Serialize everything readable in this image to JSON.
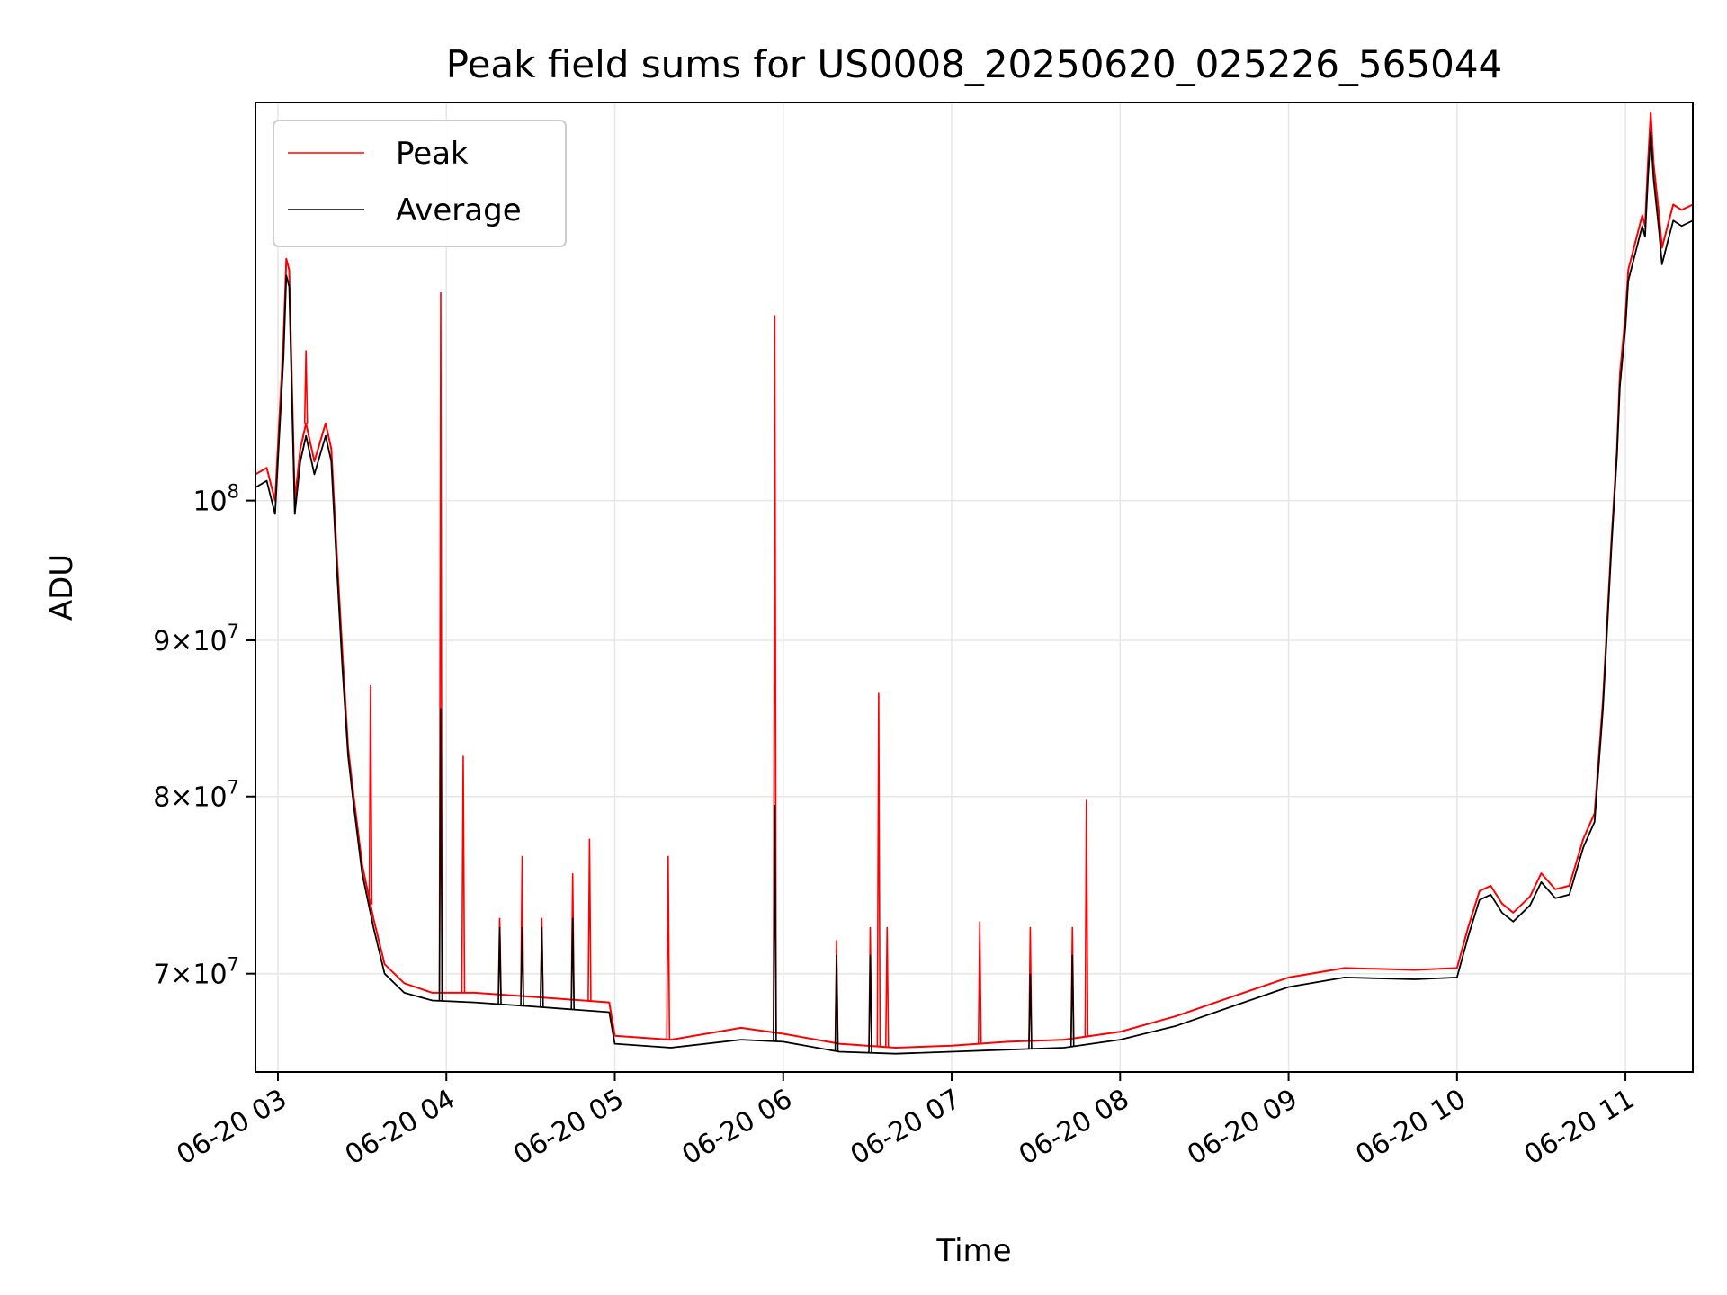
{
  "chart_data": {
    "type": "line",
    "title": "Peak field sums for US0008_20250620_025226_565044",
    "xlabel": "Time",
    "ylabel": "ADU",
    "y_scale": "log",
    "xlim": [
      "2025-06-20T02:52",
      "2025-06-20T11:24"
    ],
    "ylim": [
      65000000,
      135000000
    ],
    "grid": true,
    "legend_position": "top-left",
    "x_ticks": [
      {
        "value": "2025-06-20T03:00",
        "label": "06-20 03"
      },
      {
        "value": "2025-06-20T04:00",
        "label": "06-20 04"
      },
      {
        "value": "2025-06-20T05:00",
        "label": "06-20 05"
      },
      {
        "value": "2025-06-20T06:00",
        "label": "06-20 06"
      },
      {
        "value": "2025-06-20T07:00",
        "label": "06-20 07"
      },
      {
        "value": "2025-06-20T08:00",
        "label": "06-20 08"
      },
      {
        "value": "2025-06-20T09:00",
        "label": "06-20 09"
      },
      {
        "value": "2025-06-20T10:00",
        "label": "06-20 10"
      },
      {
        "value": "2025-06-20T11:00",
        "label": "06-20 11"
      }
    ],
    "y_ticks": [
      {
        "value": 70000000,
        "mantissa": "7",
        "base": "10",
        "exp": "7"
      },
      {
        "value": 80000000,
        "mantissa": "8",
        "base": "10",
        "exp": "7"
      },
      {
        "value": 90000000,
        "mantissa": "9",
        "base": "10",
        "exp": "7"
      },
      {
        "value": 100000000,
        "mantissa": "",
        "base": "10",
        "exp": "8"
      }
    ],
    "series": [
      {
        "name": "Peak",
        "color": "#ff0000",
        "points": [
          [
            "2025-06-20T02:52",
            102000000
          ],
          [
            "2025-06-20T02:56",
            102500000
          ],
          [
            "2025-06-20T02:59",
            100000000
          ],
          [
            "2025-06-20T03:02",
            113000000
          ],
          [
            "2025-06-20T03:03",
            120000000
          ],
          [
            "2025-06-20T03:04",
            119000000
          ],
          [
            "2025-06-20T03:06",
            100000000
          ],
          [
            "2025-06-20T03:08",
            104000000
          ],
          [
            "2025-06-20T03:10",
            106000000
          ],
          [
            "2025-06-20T03:13",
            103000000
          ],
          [
            "2025-06-20T03:17",
            106000000
          ],
          [
            "2025-06-20T03:19",
            104000000
          ],
          [
            "2025-06-20T03:21",
            96000000
          ],
          [
            "2025-06-20T03:23",
            89000000
          ],
          [
            "2025-06-20T03:25",
            83000000
          ],
          [
            "2025-06-20T03:27",
            80000000
          ],
          [
            "2025-06-20T03:30",
            76000000
          ],
          [
            "2025-06-20T03:34",
            73000000
          ],
          [
            "2025-06-20T03:38",
            70500000
          ],
          [
            "2025-06-20T03:45",
            69500000
          ],
          [
            "2025-06-20T03:55",
            69000000
          ],
          [
            "2025-06-20T04:10",
            69000000
          ],
          [
            "2025-06-20T04:30",
            68800000
          ],
          [
            "2025-06-20T04:58",
            68500000
          ],
          [
            "2025-06-20T05:00",
            66800000
          ],
          [
            "2025-06-20T05:20",
            66600000
          ],
          [
            "2025-06-20T05:45",
            67200000
          ],
          [
            "2025-06-20T06:00",
            66900000
          ],
          [
            "2025-06-20T06:20",
            66400000
          ],
          [
            "2025-06-20T06:40",
            66200000
          ],
          [
            "2025-06-20T07:00",
            66300000
          ],
          [
            "2025-06-20T07:20",
            66500000
          ],
          [
            "2025-06-20T07:40",
            66600000
          ],
          [
            "2025-06-20T08:00",
            67000000
          ],
          [
            "2025-06-20T08:20",
            67800000
          ],
          [
            "2025-06-20T08:40",
            68800000
          ],
          [
            "2025-06-20T09:00",
            69800000
          ],
          [
            "2025-06-20T09:20",
            70300000
          ],
          [
            "2025-06-20T09:45",
            70200000
          ],
          [
            "2025-06-20T10:00",
            70300000
          ],
          [
            "2025-06-20T10:04",
            72500000
          ],
          [
            "2025-06-20T10:08",
            74500000
          ],
          [
            "2025-06-20T10:12",
            74800000
          ],
          [
            "2025-06-20T10:16",
            73800000
          ],
          [
            "2025-06-20T10:20",
            73300000
          ],
          [
            "2025-06-20T10:26",
            74200000
          ],
          [
            "2025-06-20T10:30",
            75500000
          ],
          [
            "2025-06-20T10:35",
            74600000
          ],
          [
            "2025-06-20T10:40",
            74800000
          ],
          [
            "2025-06-20T10:45",
            77500000
          ],
          [
            "2025-06-20T10:49",
            79000000
          ],
          [
            "2025-06-20T10:52",
            86000000
          ],
          [
            "2025-06-20T10:55",
            97000000
          ],
          [
            "2025-06-20T10:57",
            104000000
          ],
          [
            "2025-06-20T10:58",
            110000000
          ],
          [
            "2025-06-20T11:00",
            115000000
          ],
          [
            "2025-06-20T11:01",
            119000000
          ],
          [
            "2025-06-20T11:03",
            121000000
          ],
          [
            "2025-06-20T11:05",
            123000000
          ],
          [
            "2025-06-20T11:06",
            124000000
          ],
          [
            "2025-06-20T11:07",
            123000000
          ],
          [
            "2025-06-20T11:08",
            129000000
          ],
          [
            "2025-06-20T11:09",
            134000000
          ],
          [
            "2025-06-20T11:10",
            129000000
          ],
          [
            "2025-06-20T11:12",
            124000000
          ],
          [
            "2025-06-20T11:13",
            121000000
          ],
          [
            "2025-06-20T11:15",
            123000000
          ],
          [
            "2025-06-20T11:17",
            125000000
          ],
          [
            "2025-06-20T11:20",
            124500000
          ],
          [
            "2025-06-20T11:24",
            125000000
          ]
        ],
        "spikes": [
          [
            "2025-06-20T03:10",
            112000000
          ],
          [
            "2025-06-20T03:33",
            87000000
          ],
          [
            "2025-06-20T03:58",
            117000000
          ],
          [
            "2025-06-20T04:06",
            82500000
          ],
          [
            "2025-06-20T04:19",
            73000000
          ],
          [
            "2025-06-20T04:27",
            76500000
          ],
          [
            "2025-06-20T04:34",
            73000000
          ],
          [
            "2025-06-20T04:45",
            75500000
          ],
          [
            "2025-06-20T04:51",
            77500000
          ],
          [
            "2025-06-20T05:19",
            76500000
          ],
          [
            "2025-06-20T05:57",
            115000000
          ],
          [
            "2025-06-20T06:19",
            71800000
          ],
          [
            "2025-06-20T06:31",
            72500000
          ],
          [
            "2025-06-20T06:34",
            86500000
          ],
          [
            "2025-06-20T06:37",
            72500000
          ],
          [
            "2025-06-20T07:10",
            72800000
          ],
          [
            "2025-06-20T07:28",
            72500000
          ],
          [
            "2025-06-20T07:43",
            72500000
          ],
          [
            "2025-06-20T07:48",
            79800000
          ]
        ]
      },
      {
        "name": "Average",
        "color": "#000000",
        "points": [
          [
            "2025-06-20T02:52",
            101000000
          ],
          [
            "2025-06-20T02:56",
            101500000
          ],
          [
            "2025-06-20T02:59",
            99000000
          ],
          [
            "2025-06-20T03:02",
            111500000
          ],
          [
            "2025-06-20T03:03",
            118500000
          ],
          [
            "2025-06-20T03:04",
            117500000
          ],
          [
            "2025-06-20T03:06",
            99000000
          ],
          [
            "2025-06-20T03:08",
            103000000
          ],
          [
            "2025-06-20T03:10",
            105000000
          ],
          [
            "2025-06-20T03:13",
            102000000
          ],
          [
            "2025-06-20T03:17",
            105000000
          ],
          [
            "2025-06-20T03:19",
            103000000
          ],
          [
            "2025-06-20T03:21",
            95000000
          ],
          [
            "2025-06-20T03:23",
            88000000
          ],
          [
            "2025-06-20T03:25",
            82500000
          ],
          [
            "2025-06-20T03:27",
            79500000
          ],
          [
            "2025-06-20T03:30",
            75500000
          ],
          [
            "2025-06-20T03:34",
            72500000
          ],
          [
            "2025-06-20T03:38",
            70000000
          ],
          [
            "2025-06-20T03:45",
            69000000
          ],
          [
            "2025-06-20T03:55",
            68600000
          ],
          [
            "2025-06-20T04:10",
            68500000
          ],
          [
            "2025-06-20T04:30",
            68300000
          ],
          [
            "2025-06-20T04:58",
            68000000
          ],
          [
            "2025-06-20T05:00",
            66400000
          ],
          [
            "2025-06-20T05:20",
            66200000
          ],
          [
            "2025-06-20T05:45",
            66600000
          ],
          [
            "2025-06-20T06:00",
            66500000
          ],
          [
            "2025-06-20T06:20",
            66000000
          ],
          [
            "2025-06-20T06:40",
            65900000
          ],
          [
            "2025-06-20T07:00",
            66000000
          ],
          [
            "2025-06-20T07:20",
            66100000
          ],
          [
            "2025-06-20T07:40",
            66200000
          ],
          [
            "2025-06-20T08:00",
            66600000
          ],
          [
            "2025-06-20T08:20",
            67300000
          ],
          [
            "2025-06-20T08:40",
            68300000
          ],
          [
            "2025-06-20T09:00",
            69300000
          ],
          [
            "2025-06-20T09:20",
            69800000
          ],
          [
            "2025-06-20T09:45",
            69700000
          ],
          [
            "2025-06-20T10:00",
            69800000
          ],
          [
            "2025-06-20T10:04",
            72000000
          ],
          [
            "2025-06-20T10:08",
            74000000
          ],
          [
            "2025-06-20T10:12",
            74300000
          ],
          [
            "2025-06-20T10:16",
            73300000
          ],
          [
            "2025-06-20T10:20",
            72800000
          ],
          [
            "2025-06-20T10:26",
            73700000
          ],
          [
            "2025-06-20T10:30",
            75000000
          ],
          [
            "2025-06-20T10:35",
            74100000
          ],
          [
            "2025-06-20T10:40",
            74300000
          ],
          [
            "2025-06-20T10:45",
            77000000
          ],
          [
            "2025-06-20T10:49",
            78500000
          ],
          [
            "2025-06-20T10:52",
            85500000
          ],
          [
            "2025-06-20T10:55",
            96500000
          ],
          [
            "2025-06-20T10:57",
            103500000
          ],
          [
            "2025-06-20T10:58",
            109000000
          ],
          [
            "2025-06-20T11:00",
            114000000
          ],
          [
            "2025-06-20T11:01",
            118000000
          ],
          [
            "2025-06-20T11:03",
            120000000
          ],
          [
            "2025-06-20T11:05",
            122000000
          ],
          [
            "2025-06-20T11:06",
            123000000
          ],
          [
            "2025-06-20T11:07",
            122000000
          ],
          [
            "2025-06-20T11:08",
            127500000
          ],
          [
            "2025-06-20T11:09",
            132000000
          ],
          [
            "2025-06-20T11:10",
            127500000
          ],
          [
            "2025-06-20T11:12",
            122500000
          ],
          [
            "2025-06-20T11:13",
            119500000
          ],
          [
            "2025-06-20T11:15",
            121500000
          ],
          [
            "2025-06-20T11:17",
            123500000
          ],
          [
            "2025-06-20T11:20",
            123000000
          ],
          [
            "2025-06-20T11:24",
            123500000
          ]
        ],
        "spikes": [
          [
            "2025-06-20T03:58",
            85500000
          ],
          [
            "2025-06-20T05:57",
            79500000
          ],
          [
            "2025-06-20T06:19",
            71000000
          ],
          [
            "2025-06-20T06:31",
            71000000
          ],
          [
            "2025-06-20T07:28",
            70000000
          ],
          [
            "2025-06-20T07:43",
            71000000
          ],
          [
            "2025-06-20T04:19",
            72500000
          ],
          [
            "2025-06-20T04:27",
            72500000
          ],
          [
            "2025-06-20T04:34",
            72500000
          ],
          [
            "2025-06-20T04:45",
            73000000
          ]
        ]
      }
    ]
  }
}
